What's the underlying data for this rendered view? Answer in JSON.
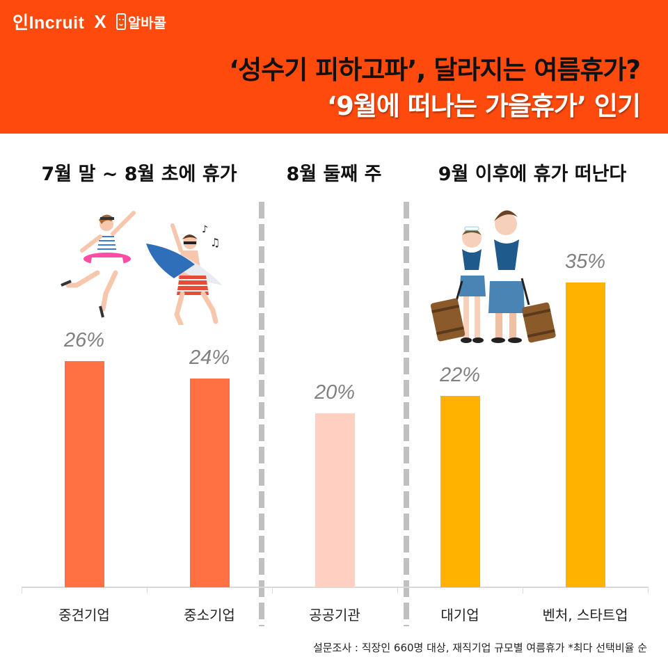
{
  "brand": {
    "left_logo": "incruit",
    "left_logo_prefix": "인",
    "separator": "X",
    "right_logo": "알바콜",
    "right_logo_icon": "phone-smile-icon"
  },
  "header": {
    "title_line1": "‘성수기 피하고파’, 달라지는 여름휴가?",
    "title_line2": "‘9월에 떠나는 가을휴가’ 인기",
    "background_color": "#ff4a0d"
  },
  "sections": [
    {
      "label": "7월 말 ~ 8월 초에 휴가"
    },
    {
      "label": "8월 둘째 주"
    },
    {
      "label": "9월 이후에 휴가 떠난다"
    }
  ],
  "chart_data": {
    "type": "bar",
    "title": "‘성수기 피하고파’, 달라지는 여름휴가? ‘9월에 떠나는 가을휴가’ 인기",
    "categories": [
      "중견기업",
      "중소기업",
      "공공기관",
      "대기업",
      "벤처, 스타트업"
    ],
    "values": [
      26,
      24,
      20,
      22,
      35
    ],
    "value_labels": [
      "26%",
      "24%",
      "20%",
      "22%",
      "35%"
    ],
    "groups": [
      {
        "label": "7월 말 ~ 8월 초에 휴가",
        "categories": [
          "중견기업",
          "중소기업"
        ],
        "color": "#ff7043"
      },
      {
        "label": "8월 둘째 주",
        "categories": [
          "공공기관"
        ],
        "color": "#ffd0c2"
      },
      {
        "label": "9월 이후에 휴가 떠난다",
        "categories": [
          "대기업",
          "벤처, 스타트업"
        ],
        "color": "#ffb300"
      }
    ],
    "bar_colors": [
      "#ff7043",
      "#ff7043",
      "#ffd0c2",
      "#ffb300",
      "#ffb300"
    ],
    "xlabel": "",
    "ylabel": "",
    "ylim": [
      0,
      40
    ],
    "grid": false,
    "legend": "none",
    "unit": "%"
  },
  "footnote": "설문조사 : 직장인 660명 대상, 재직기업 규모별 여름휴가  *최다 선택비율 순"
}
